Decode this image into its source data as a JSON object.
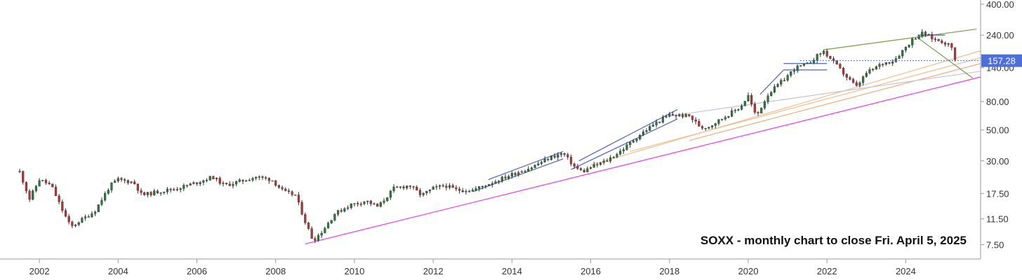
{
  "chart_data": {
    "type": "candlestick",
    "annotation": "SOXX - monthly chart to close Fri. April 5, 2025",
    "last_price": "157.28",
    "y_scale": "log",
    "ylim": [
      6.2,
      400
    ],
    "xlim": [
      2001.0,
      2025.9
    ],
    "y_ticks": [
      {
        "value": 400,
        "label": "400.00"
      },
      {
        "value": 240,
        "label": "240.00"
      },
      {
        "value": 140,
        "label": "140.00"
      },
      {
        "value": 80,
        "label": "80.00"
      },
      {
        "value": 50,
        "label": "50.00"
      },
      {
        "value": 30,
        "label": "30.00"
      },
      {
        "value": 17.5,
        "label": "17.50"
      },
      {
        "value": 11.5,
        "label": "11.50"
      },
      {
        "value": 7.5,
        "label": "7.50"
      }
    ],
    "x_ticks": [
      {
        "value": 2002,
        "label": "2002"
      },
      {
        "value": 2004,
        "label": "2004"
      },
      {
        "value": 2006,
        "label": "2006"
      },
      {
        "value": 2008,
        "label": "2008"
      },
      {
        "value": 2010,
        "label": "2010"
      },
      {
        "value": 2012,
        "label": "2012"
      },
      {
        "value": 2014,
        "label": "2014"
      },
      {
        "value": 2016,
        "label": "2016"
      },
      {
        "value": 2018,
        "label": "2018"
      },
      {
        "value": 2020,
        "label": "2020"
      },
      {
        "value": 2022,
        "label": "2022"
      },
      {
        "value": 2024,
        "label": "2024"
      }
    ],
    "price_path": [
      [
        2001.5,
        25
      ],
      [
        2001.75,
        16
      ],
      [
        2002.0,
        22
      ],
      [
        2002.3,
        20
      ],
      [
        2002.6,
        13
      ],
      [
        2002.8,
        10
      ],
      [
        2003.0,
        11
      ],
      [
        2003.4,
        13
      ],
      [
        2003.8,
        20
      ],
      [
        2004.0,
        22
      ],
      [
        2004.4,
        21
      ],
      [
        2004.6,
        17
      ],
      [
        2005.0,
        18
      ],
      [
        2005.5,
        19
      ],
      [
        2006.0,
        21
      ],
      [
        2006.4,
        23
      ],
      [
        2006.7,
        20
      ],
      [
        2007.0,
        21
      ],
      [
        2007.5,
        23
      ],
      [
        2007.9,
        22
      ],
      [
        2008.2,
        18
      ],
      [
        2008.5,
        17
      ],
      [
        2008.75,
        11
      ],
      [
        2008.95,
        8
      ],
      [
        2009.2,
        9.5
      ],
      [
        2009.5,
        12.5
      ],
      [
        2009.9,
        14.5
      ],
      [
        2010.3,
        15.5
      ],
      [
        2010.6,
        14
      ],
      [
        2011.0,
        19
      ],
      [
        2011.4,
        20
      ],
      [
        2011.7,
        17
      ],
      [
        2012.0,
        19
      ],
      [
        2012.3,
        20
      ],
      [
        2012.6,
        18.5
      ],
      [
        2013.0,
        18.5
      ],
      [
        2013.5,
        21
      ],
      [
        2014.0,
        24
      ],
      [
        2014.5,
        27
      ],
      [
        2015.0,
        32
      ],
      [
        2015.3,
        34
      ],
      [
        2015.6,
        27
      ],
      [
        2015.8,
        25
      ],
      [
        2016.0,
        27
      ],
      [
        2016.4,
        30
      ],
      [
        2016.8,
        36
      ],
      [
        2017.2,
        45
      ],
      [
        2017.6,
        55
      ],
      [
        2018.0,
        64
      ],
      [
        2018.5,
        63
      ],
      [
        2018.8,
        52
      ],
      [
        2019.0,
        53
      ],
      [
        2019.4,
        62
      ],
      [
        2019.8,
        73
      ],
      [
        2020.0,
        88
      ],
      [
        2020.2,
        62
      ],
      [
        2020.5,
        90
      ],
      [
        2020.9,
        115
      ],
      [
        2021.2,
        140
      ],
      [
        2021.5,
        148
      ],
      [
        2021.9,
        185
      ],
      [
        2022.2,
        150
      ],
      [
        2022.5,
        120
      ],
      [
        2022.75,
        102
      ],
      [
        2023.0,
        128
      ],
      [
        2023.4,
        150
      ],
      [
        2023.7,
        158
      ],
      [
        2023.95,
        190
      ],
      [
        2024.2,
        228
      ],
      [
        2024.45,
        250
      ],
      [
        2024.7,
        225
      ],
      [
        2024.95,
        215
      ],
      [
        2025.15,
        200
      ],
      [
        2025.27,
        157.28
      ]
    ],
    "trendlines": [
      {
        "color": "#e040e0",
        "points": [
          [
            2008.75,
            7.6
          ],
          [
            2025.9,
            120
          ]
        ]
      },
      {
        "color": "#f0c090",
        "points": [
          [
            2016.0,
            28
          ],
          [
            2025.9,
            185
          ]
        ]
      },
      {
        "color": "#f0c090",
        "points": [
          [
            2017.0,
            35
          ],
          [
            2025.9,
            165
          ]
        ]
      },
      {
        "color": "#e8b080",
        "points": [
          [
            2018.5,
            42
          ],
          [
            2025.9,
            150
          ]
        ]
      },
      {
        "color": "#c8c0d8",
        "points": [
          [
            2018.0,
            63
          ],
          [
            2025.9,
            132
          ]
        ]
      },
      {
        "color": "#7a9a4a",
        "points": [
          [
            2021.9,
            188
          ],
          [
            2025.8,
            265
          ]
        ]
      },
      {
        "color": "#7a9a4a",
        "points": [
          [
            2024.3,
            230
          ],
          [
            2025.7,
            118
          ]
        ]
      },
      {
        "color": "#5060c0",
        "points": [
          [
            2013.0,
            18
          ],
          [
            2015.3,
            31
          ]
        ]
      },
      {
        "color": "#5060c0",
        "points": [
          [
            2013.4,
            22
          ],
          [
            2015.3,
            35
          ]
        ]
      },
      {
        "color": "#5060c0",
        "points": [
          [
            2015.5,
            26
          ],
          [
            2018.2,
            60
          ]
        ]
      },
      {
        "color": "#5060c0",
        "points": [
          [
            2015.7,
            30
          ],
          [
            2018.2,
            70
          ]
        ]
      },
      {
        "color": "#5060c0",
        "points": [
          [
            2020.3,
            90
          ],
          [
            2020.9,
            135
          ]
        ]
      },
      {
        "color": "#5060c0",
        "points": [
          [
            2020.9,
            135
          ],
          [
            2022.0,
            135
          ]
        ]
      },
      {
        "color": "#5060c0",
        "points": [
          [
            2020.9,
            150
          ],
          [
            2022.0,
            150
          ]
        ]
      },
      {
        "color": "#5060c0",
        "points": [
          [
            2024.3,
            240
          ],
          [
            2025.0,
            240
          ]
        ]
      }
    ]
  }
}
